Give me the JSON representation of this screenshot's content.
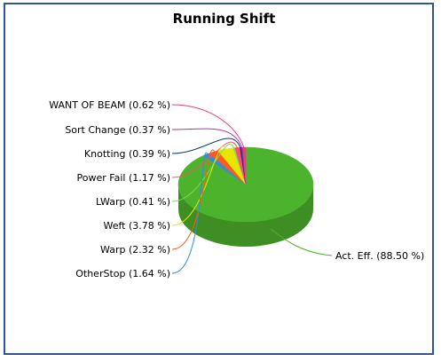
{
  "chart_data": {
    "type": "pie",
    "title": "Running Shift",
    "slices": [
      {
        "label": "Act. Eff. (88.50 %)",
        "name": "Act. Eff.",
        "value": 88.5,
        "color": "#4cb32c"
      },
      {
        "label": "OtherStop (1.64 %)",
        "name": "OtherStop",
        "value": 1.64,
        "color": "#2f8fd8"
      },
      {
        "label": "Warp (2.32 %)",
        "name": "Warp",
        "value": 2.32,
        "color": "#ff5a1f"
      },
      {
        "label": "Weft (3.78 %)",
        "name": "Weft",
        "value": 3.78,
        "color": "#e6e600"
      },
      {
        "label": "LWarp (0.41 %)",
        "name": "LWarp",
        "value": 0.41,
        "color": "#7ed957"
      },
      {
        "label": "Power Fail (1.17 %)",
        "name": "Power Fail",
        "value": 1.17,
        "color": "#ff4d6a"
      },
      {
        "label": "Knotting (0.39 %)",
        "name": "Knotting",
        "value": 0.39,
        "color": "#0b3f6e"
      },
      {
        "label": "Sort Change (0.37 %)",
        "name": "Sort Change",
        "value": 0.37,
        "color": "#b030b0"
      },
      {
        "label": "WANT OF BEAM (0.62 %)",
        "name": "WANT OF BEAM",
        "value": 0.62,
        "color": "#e8407f"
      }
    ],
    "legend": "none",
    "label_style": "callout-lines"
  }
}
